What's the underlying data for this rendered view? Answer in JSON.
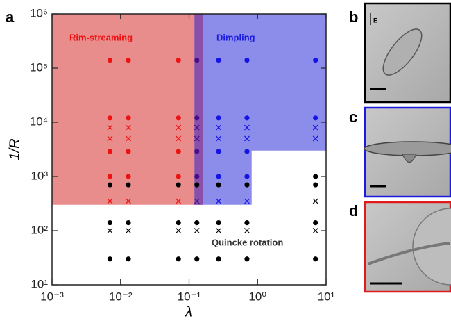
{
  "chart_data": {
    "type": "scatter",
    "panel_label": "a",
    "xlabel": "λ",
    "ylabel": "1/R",
    "xlog": true,
    "ylog": true,
    "xlim": [
      0.001,
      10
    ],
    "ylim": [
      10,
      1000000
    ],
    "xticks": [
      {
        "value": 0.001,
        "label": "10⁻³"
      },
      {
        "value": 0.01,
        "label": "10⁻²"
      },
      {
        "value": 0.1,
        "label": "10⁻¹"
      },
      {
        "value": 1,
        "label": "10⁰"
      },
      {
        "value": 10,
        "label": "10¹"
      }
    ],
    "yticks": [
      {
        "value": 10,
        "label": "10¹"
      },
      {
        "value": 100,
        "label": "10²"
      },
      {
        "value": 1000,
        "label": "10³"
      },
      {
        "value": 10000,
        "label": "10⁴"
      },
      {
        "value": 100000,
        "label": "10⁵"
      },
      {
        "value": 1000000,
        "label": "10⁶"
      }
    ],
    "regions": [
      {
        "color": "#e88c8c",
        "x": [
          0.001,
          0.16,
          0.16,
          0.001
        ],
        "y": [
          300,
          300,
          1000000,
          1000000
        ]
      },
      {
        "color": "#8c8cea",
        "x": [
          0.12,
          0.82,
          0.82,
          10,
          10,
          0.12
        ],
        "y": [
          300,
          300,
          3000,
          3000,
          1000000,
          1000000
        ]
      },
      {
        "color": "#8a4fa8",
        "x": [
          0.12,
          0.16,
          0.16,
          0.12
        ],
        "y": [
          300,
          300,
          1000000,
          1000000
        ]
      }
    ],
    "annotations": [
      {
        "text": "Rim-streaming",
        "color": "#ee1111"
      },
      {
        "text": "Dimpling",
        "color": "#1a1ae0"
      },
      {
        "text": "Quincke rotation",
        "color": "#333333"
      }
    ],
    "series": [
      {
        "color": "#ee1111",
        "marker": "dot",
        "x": [
          0.007,
          0.007,
          0.007,
          0.007,
          0.013,
          0.013,
          0.013,
          0.013,
          0.07,
          0.07,
          0.07,
          0.07
        ],
        "y": [
          140000,
          12000,
          2900,
          1000,
          140000,
          12000,
          2900,
          1000,
          140000,
          12000,
          2900,
          1000
        ]
      },
      {
        "color": "#ee1111",
        "marker": "x",
        "x": [
          0.007,
          0.007,
          0.007,
          0.013,
          0.013,
          0.013,
          0.07,
          0.07,
          0.07
        ],
        "y": [
          8000,
          5000,
          350,
          8000,
          5000,
          350,
          8000,
          5000,
          350
        ]
      },
      {
        "color": "#4a0c8c",
        "marker": "dot",
        "x": [
          0.13,
          0.13,
          0.13,
          0.13
        ],
        "y": [
          140000,
          12000,
          2900,
          1000
        ]
      },
      {
        "color": "#4a0c8c",
        "marker": "x",
        "x": [
          0.13,
          0.13,
          0.13
        ],
        "y": [
          8000,
          5000,
          350
        ]
      },
      {
        "color": "#1414e6",
        "marker": "dot",
        "x": [
          0.27,
          0.27,
          0.27,
          0.27,
          0.7,
          0.7,
          0.7,
          0.7,
          7,
          7
        ],
        "y": [
          140000,
          12000,
          2900,
          1000,
          140000,
          12000,
          2900,
          1000,
          140000,
          12000
        ]
      },
      {
        "color": "#1414e6",
        "marker": "x",
        "x": [
          0.27,
          0.27,
          0.27,
          0.7,
          0.7,
          0.7,
          7,
          7
        ],
        "y": [
          8000,
          5000,
          350,
          8000,
          5000,
          350,
          8000,
          5000
        ]
      },
      {
        "color": "#000000",
        "marker": "dot",
        "x": [
          0.007,
          0.013,
          0.07,
          0.13,
          0.27,
          0.7,
          7,
          7,
          0.007,
          0.013,
          0.07,
          0.13,
          0.27,
          0.7,
          7,
          0.007,
          0.013,
          0.07,
          0.13,
          0.27,
          0.7,
          7
        ],
        "y": [
          700,
          700,
          700,
          700,
          700,
          700,
          700,
          1000,
          140,
          140,
          140,
          140,
          140,
          140,
          140,
          30,
          30,
          30,
          30,
          30,
          30,
          30
        ]
      },
      {
        "color": "#000000",
        "marker": "x",
        "x": [
          7,
          0.007,
          0.013,
          0.07,
          0.13,
          0.27,
          0.7,
          7
        ],
        "y": [
          350,
          100,
          100,
          100,
          100,
          100,
          100,
          100
        ]
      }
    ]
  },
  "panels": [
    {
      "label": "b",
      "field_label": "E",
      "border": "#000000"
    },
    {
      "label": "c",
      "border": "#1a1ae0"
    },
    {
      "label": "d",
      "border": "#e01a1a"
    }
  ]
}
